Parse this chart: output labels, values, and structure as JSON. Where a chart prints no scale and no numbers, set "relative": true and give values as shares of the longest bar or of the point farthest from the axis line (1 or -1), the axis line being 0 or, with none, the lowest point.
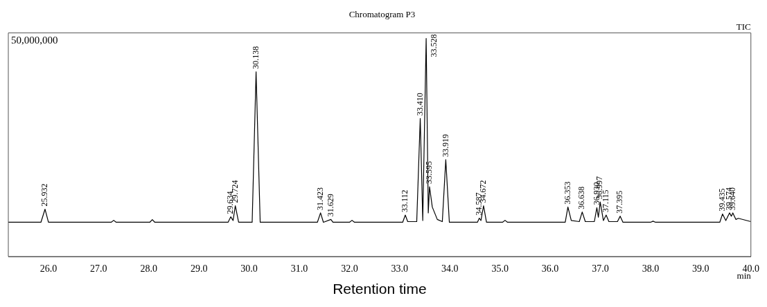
{
  "chart_data": {
    "type": "line",
    "title": "Chromatogram P3",
    "xlabel": "Retention time",
    "relative": true,
    "grid": false,
    "legend": false,
    "marker": "none",
    "line_style": "solid",
    "x": [
      25.2,
      25.85,
      25.932,
      26.0,
      27.25,
      27.3,
      27.35,
      28.02,
      28.07,
      28.12,
      29.58,
      29.634,
      29.68,
      29.724,
      29.79,
      30.06,
      30.138,
      30.22,
      31.36,
      31.423,
      31.48,
      31.629,
      31.67,
      32.0,
      32.05,
      32.1,
      33.06,
      33.112,
      33.16,
      33.34,
      33.41,
      33.46,
      33.528,
      33.57,
      33.595,
      33.65,
      33.75,
      33.85,
      33.919,
      33.99,
      34.55,
      34.587,
      34.62,
      34.672,
      34.73,
      35.05,
      35.1,
      35.15,
      36.3,
      36.353,
      36.42,
      36.58,
      36.638,
      36.7,
      36.88,
      36.93,
      36.96,
      36.997,
      37.06,
      37.115,
      37.17,
      37.34,
      37.395,
      37.45,
      38.0,
      38.05,
      38.1,
      39.38,
      39.435,
      39.5,
      39.574,
      39.61,
      39.64,
      39.7,
      39.75,
      40.0
    ],
    "series": [
      {
        "color": "#000000",
        "values": [
          0.157,
          0.157,
          0.217,
          0.157,
          0.157,
          0.166,
          0.157,
          0.157,
          0.169,
          0.157,
          0.157,
          0.182,
          0.165,
          0.233,
          0.157,
          0.157,
          0.847,
          0.157,
          0.157,
          0.2,
          0.157,
          0.17,
          0.157,
          0.157,
          0.166,
          0.157,
          0.157,
          0.19,
          0.16,
          0.16,
          0.633,
          0.165,
          1.0,
          0.2,
          0.32,
          0.227,
          0.17,
          0.16,
          0.444,
          0.157,
          0.157,
          0.176,
          0.165,
          0.233,
          0.157,
          0.157,
          0.166,
          0.157,
          0.157,
          0.227,
          0.165,
          0.16,
          0.204,
          0.16,
          0.16,
          0.224,
          0.18,
          0.25,
          0.165,
          0.19,
          0.16,
          0.16,
          0.185,
          0.157,
          0.157,
          0.162,
          0.157,
          0.157,
          0.195,
          0.165,
          0.2,
          0.185,
          0.2,
          0.17,
          0.175,
          0.16
        ]
      }
    ],
    "xlim": [
      25.2,
      40.0
    ],
    "xticks": [
      {
        "value": 26,
        "label": "26.0"
      },
      {
        "value": 27,
        "label": "27.0"
      },
      {
        "value": 28,
        "label": "28.0"
      },
      {
        "value": 29,
        "label": "29.0"
      },
      {
        "value": 30,
        "label": "30.0"
      },
      {
        "value": 31,
        "label": "31.0"
      },
      {
        "value": 32,
        "label": "32.0"
      },
      {
        "value": 33,
        "label": "33.0"
      },
      {
        "value": 34,
        "label": "34.0"
      },
      {
        "value": 35,
        "label": "35.0"
      },
      {
        "value": 36,
        "label": "36.0"
      },
      {
        "value": 37,
        "label": "37.0"
      },
      {
        "value": 38,
        "label": "38.0"
      },
      {
        "value": 39,
        "label": "39.0"
      },
      {
        "value": 40,
        "label": "40.0"
      }
    ],
    "annotations": [
      "50,000,000",
      "TIC",
      "min",
      {
        "text": "25.932",
        "x": 25.932,
        "y": 0.217
      },
      {
        "text": "29.634",
        "x": 29.634,
        "y": 0.182
      },
      {
        "text": "29.724",
        "x": 29.724,
        "y": 0.233
      },
      {
        "text": "30.138",
        "x": 30.138,
        "y": 0.847
      },
      {
        "text": "31.423",
        "x": 31.423,
        "y": 0.2
      },
      {
        "text": "31.629",
        "x": 31.629,
        "y": 0.17
      },
      {
        "text": "33.112",
        "x": 33.112,
        "y": 0.19
      },
      {
        "text": "33.410",
        "x": 33.41,
        "y": 0.633
      },
      {
        "text": "33.528",
        "x": 33.528,
        "y": 1.0
      },
      {
        "text": "33.595",
        "x": 33.595,
        "y": 0.32
      },
      {
        "text": "33.919",
        "x": 33.919,
        "y": 0.444
      },
      {
        "text": "34.587",
        "x": 34.587,
        "y": 0.176
      },
      {
        "text": "34.672",
        "x": 34.672,
        "y": 0.233
      },
      {
        "text": "36.353",
        "x": 36.353,
        "y": 0.227
      },
      {
        "text": "36.638",
        "x": 36.638,
        "y": 0.204
      },
      {
        "text": "36.930",
        "x": 36.93,
        "y": 0.224
      },
      {
        "text": "36.997",
        "x": 36.997,
        "y": 0.25
      },
      {
        "text": "37.115",
        "x": 37.115,
        "y": 0.19
      },
      {
        "text": "37.395",
        "x": 37.395,
        "y": 0.185
      },
      {
        "text": "39.435",
        "x": 39.435,
        "y": 0.195
      },
      {
        "text": "39.574",
        "x": 39.574,
        "y": 0.2
      },
      {
        "text": "39.640",
        "x": 39.64,
        "y": 0.2
      }
    ]
  }
}
